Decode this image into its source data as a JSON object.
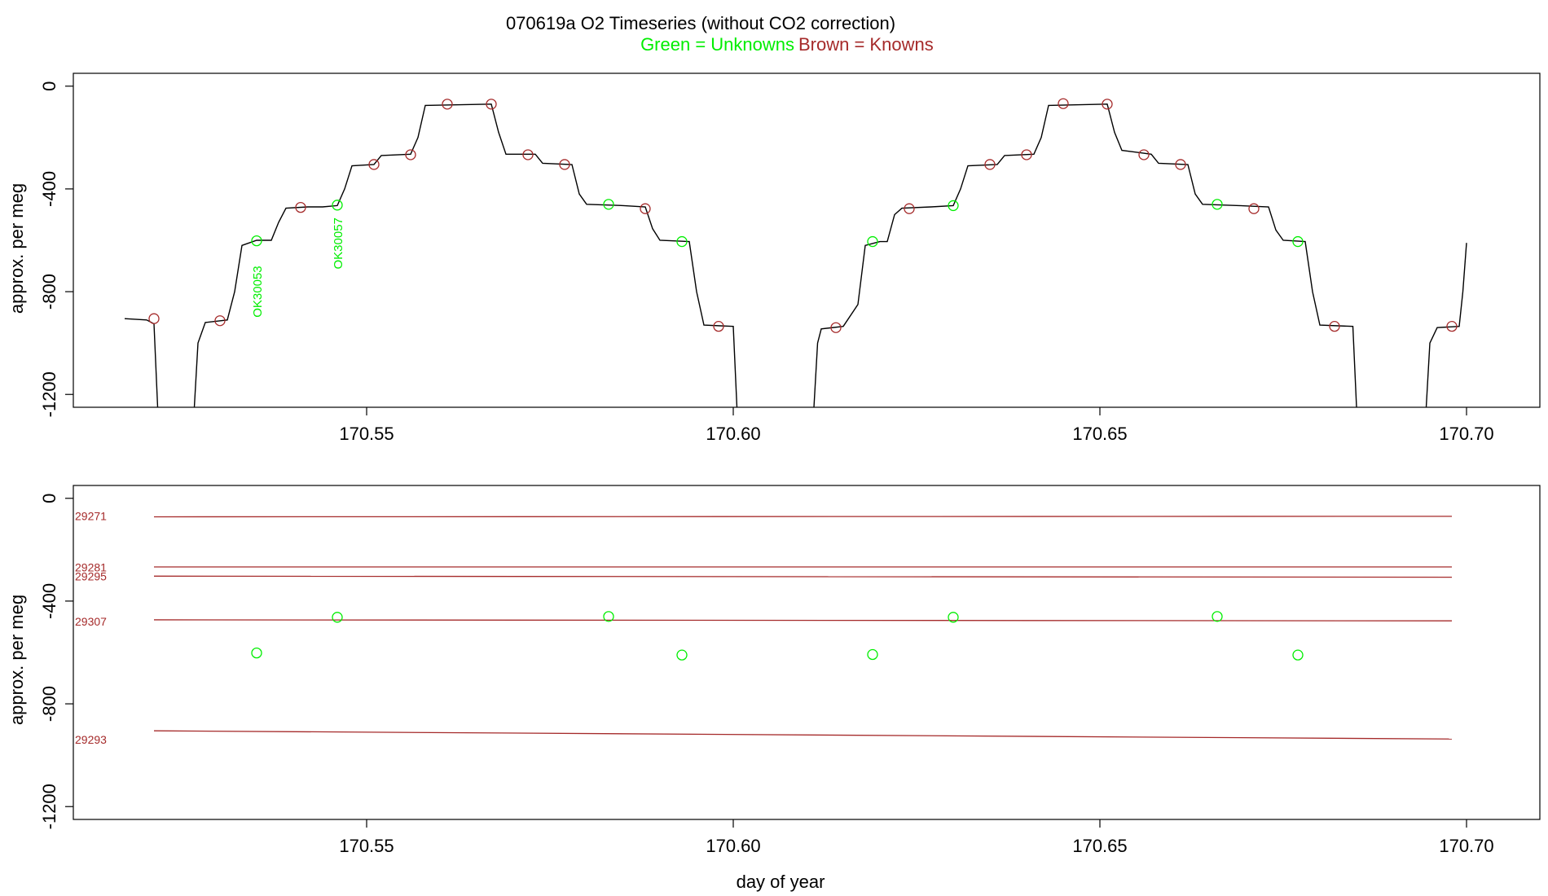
{
  "header": {
    "title": "070619a   O2 Timeseries (without CO2 correction)",
    "legend_green": "Green = Unknowns",
    "legend_brown": "Brown = Knowns"
  },
  "colors": {
    "green": "#00ee00",
    "brown": "#a52a2a",
    "line": "#000000",
    "axis": "#000000"
  },
  "chart_data": [
    {
      "type": "line",
      "ylabel": "approx. per meg",
      "xlim": [
        170.51,
        170.71
      ],
      "ylim": [
        -1250,
        50
      ],
      "xticks": [
        170.55,
        170.6,
        170.65,
        170.7
      ],
      "xtick_labels": [
        "170.55",
        "170.60",
        "170.65",
        "170.70"
      ],
      "yticks": [
        0,
        -400,
        -800,
        -1200
      ],
      "ytick_labels": [
        "0",
        "-400",
        "-800",
        "-1200"
      ],
      "segments": [
        [
          [
            170.517,
            -905
          ],
          [
            170.52,
            -910
          ],
          [
            170.521,
            -925
          ],
          [
            170.5215,
            -1250
          ]
        ],
        [
          [
            170.5265,
            -1250
          ],
          [
            170.527,
            -1000
          ],
          [
            170.528,
            -920
          ],
          [
            170.531,
            -910
          ],
          [
            170.532,
            -800
          ],
          [
            170.533,
            -620
          ],
          [
            170.535,
            -600
          ],
          [
            170.537,
            -600
          ],
          [
            170.538,
            -530
          ],
          [
            170.539,
            -475
          ],
          [
            170.542,
            -470
          ],
          [
            170.544,
            -470
          ],
          [
            170.546,
            -465
          ],
          [
            170.547,
            -400
          ],
          [
            170.548,
            -310
          ],
          [
            170.551,
            -305
          ],
          [
            170.552,
            -270
          ],
          [
            170.556,
            -265
          ],
          [
            170.557,
            -200
          ],
          [
            170.558,
            -75
          ],
          [
            170.567,
            -70
          ],
          [
            170.568,
            -180
          ],
          [
            170.569,
            -265
          ],
          [
            170.573,
            -265
          ],
          [
            170.574,
            -300
          ],
          [
            170.578,
            -305
          ],
          [
            170.579,
            -420
          ],
          [
            170.58,
            -460
          ],
          [
            170.585,
            -465
          ],
          [
            170.588,
            -470
          ],
          [
            170.589,
            -555
          ],
          [
            170.59,
            -600
          ],
          [
            170.594,
            -605
          ],
          [
            170.595,
            -800
          ],
          [
            170.596,
            -930
          ],
          [
            170.6,
            -935
          ],
          [
            170.6005,
            -1250
          ]
        ],
        [
          [
            170.611,
            -1250
          ],
          [
            170.6115,
            -1000
          ],
          [
            170.612,
            -945
          ],
          [
            170.615,
            -935
          ],
          [
            170.617,
            -850
          ],
          [
            170.618,
            -620
          ],
          [
            170.62,
            -605
          ],
          [
            170.621,
            -605
          ],
          [
            170.622,
            -500
          ],
          [
            170.623,
            -475
          ],
          [
            170.627,
            -470
          ],
          [
            170.63,
            -465
          ],
          [
            170.631,
            -400
          ],
          [
            170.632,
            -310
          ],
          [
            170.636,
            -305
          ],
          [
            170.637,
            -270
          ],
          [
            170.641,
            -265
          ],
          [
            170.642,
            -200
          ],
          [
            170.643,
            -75
          ],
          [
            170.651,
            -70
          ],
          [
            170.652,
            -180
          ],
          [
            170.653,
            -250
          ],
          [
            170.657,
            -265
          ],
          [
            170.658,
            -300
          ],
          [
            170.662,
            -305
          ],
          [
            170.663,
            -420
          ],
          [
            170.664,
            -460
          ],
          [
            170.669,
            -465
          ],
          [
            170.673,
            -470
          ],
          [
            170.674,
            -560
          ],
          [
            170.675,
            -600
          ],
          [
            170.678,
            -605
          ],
          [
            170.679,
            -800
          ],
          [
            170.68,
            -930
          ],
          [
            170.6845,
            -935
          ],
          [
            170.685,
            -1250
          ]
        ],
        [
          [
            170.6945,
            -1250
          ],
          [
            170.695,
            -1000
          ],
          [
            170.696,
            -940
          ],
          [
            170.699,
            -935
          ],
          [
            170.6995,
            -800
          ],
          [
            170.7,
            -610
          ]
        ]
      ],
      "knowns_points": [
        [
          170.521,
          -905
        ],
        [
          170.53,
          -913
        ],
        [
          170.541,
          -472
        ],
        [
          170.551,
          -305
        ],
        [
          170.556,
          -267
        ],
        [
          170.561,
          -70
        ],
        [
          170.567,
          -70
        ],
        [
          170.572,
          -267
        ],
        [
          170.577,
          -305
        ],
        [
          170.588,
          -477
        ],
        [
          170.598,
          -935
        ],
        [
          170.614,
          -940
        ],
        [
          170.624,
          -477
        ],
        [
          170.635,
          -305
        ],
        [
          170.64,
          -267
        ],
        [
          170.645,
          -68
        ],
        [
          170.651,
          -70
        ],
        [
          170.656,
          -267
        ],
        [
          170.661,
          -305
        ],
        [
          170.671,
          -477
        ],
        [
          170.682,
          -935
        ],
        [
          170.698,
          -935
        ]
      ],
      "unknowns_points": [
        [
          170.535,
          -602
        ],
        [
          170.546,
          -463
        ],
        [
          170.583,
          -460
        ],
        [
          170.593,
          -605
        ],
        [
          170.619,
          -605
        ],
        [
          170.63,
          -465
        ],
        [
          170.666,
          -460
        ],
        [
          170.677,
          -605
        ]
      ],
      "annotations": [
        {
          "text": "OK30053",
          "x": 170.535,
          "y": -800
        },
        {
          "text": "OK30057",
          "x": 170.546,
          "y": -612
        }
      ]
    },
    {
      "type": "scatter",
      "xlabel": "day of year",
      "ylabel": "approx. per meg",
      "xlim": [
        170.51,
        170.71
      ],
      "ylim": [
        -1250,
        50
      ],
      "xticks": [
        170.55,
        170.6,
        170.65,
        170.7
      ],
      "xtick_labels": [
        "170.55",
        "170.60",
        "170.65",
        "170.70"
      ],
      "yticks": [
        0,
        -400,
        -800,
        -1200
      ],
      "ytick_labels": [
        "0",
        "-400",
        "-800",
        "-1200"
      ],
      "knowns_lines": [
        {
          "label": "29271",
          "label_y": -85,
          "x1": 170.521,
          "y1": -72,
          "x2": 170.698,
          "y2": -70
        },
        {
          "label": "29281",
          "label_y": -285,
          "x1": 170.521,
          "y1": -267,
          "x2": 170.698,
          "y2": -267
        },
        {
          "label": "29295",
          "label_y": -320,
          "x1": 170.521,
          "y1": -303,
          "x2": 170.698,
          "y2": -307
        },
        {
          "label": "29307",
          "label_y": -495,
          "x1": 170.521,
          "y1": -473,
          "x2": 170.698,
          "y2": -477
        },
        {
          "label": "29293",
          "label_y": -955,
          "x1": 170.521,
          "y1": -905,
          "x2": 170.698,
          "y2": -937
        }
      ],
      "unknowns_points": [
        [
          170.535,
          -602
        ],
        [
          170.546,
          -463
        ],
        [
          170.583,
          -460
        ],
        [
          170.593,
          -610
        ],
        [
          170.619,
          -608
        ],
        [
          170.63,
          -463
        ],
        [
          170.666,
          -460
        ],
        [
          170.677,
          -610
        ]
      ]
    }
  ]
}
